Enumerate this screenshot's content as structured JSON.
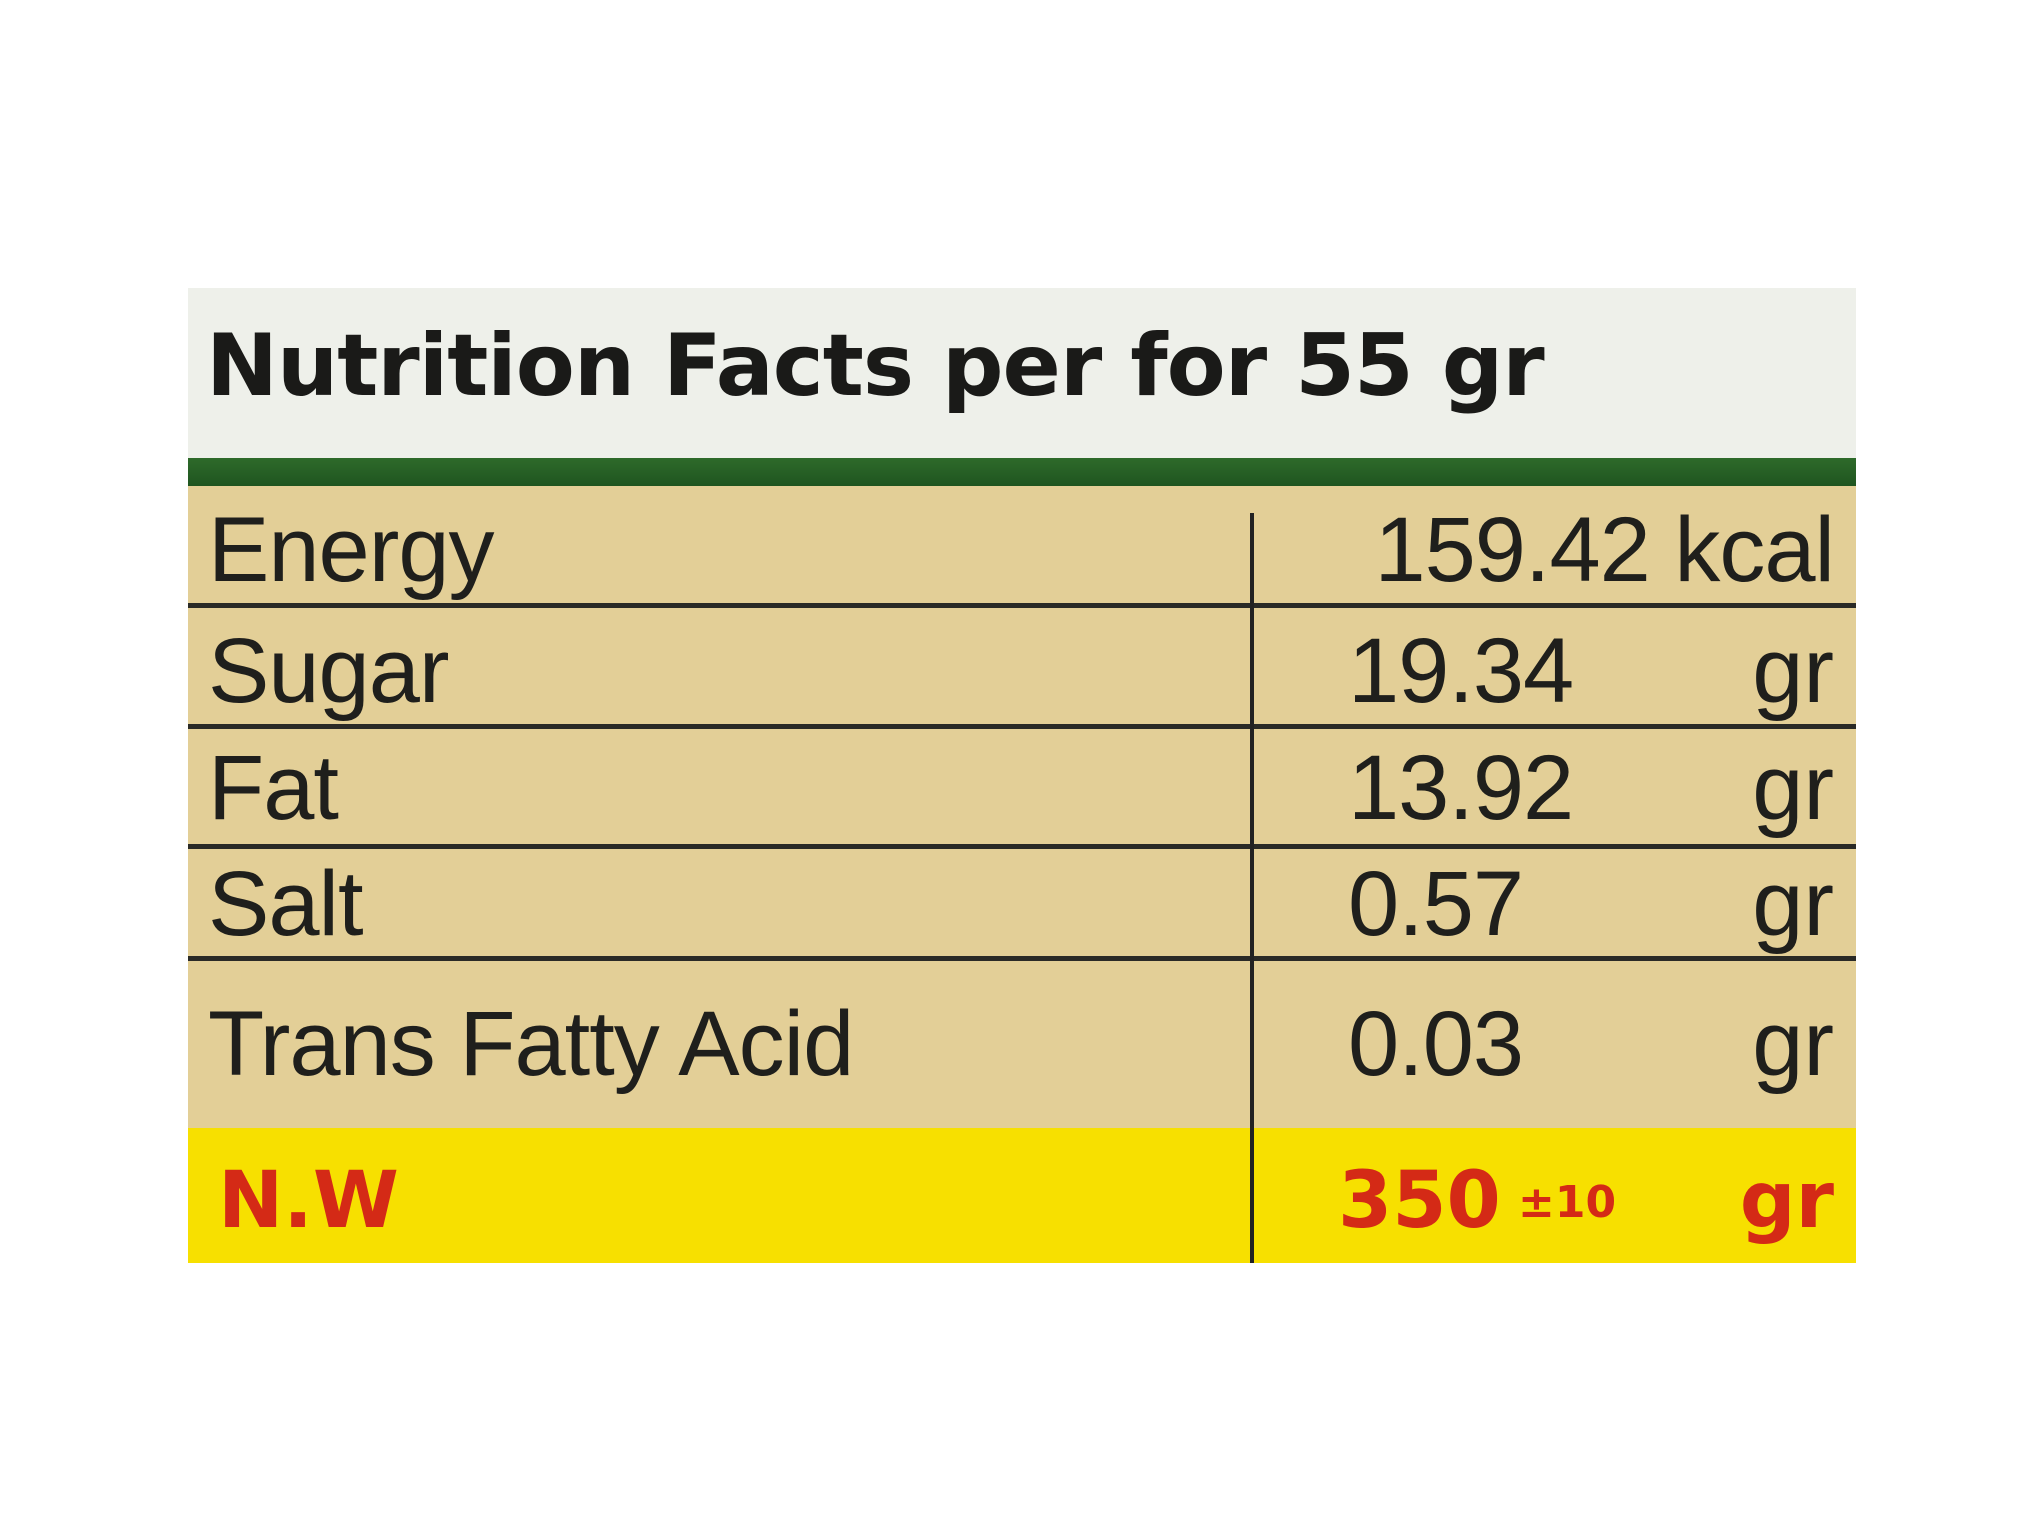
{
  "title": "Nutrition Facts per for 55 gr",
  "rows": [
    {
      "name": "Energy",
      "value": "159.42 kcal",
      "unit": ""
    },
    {
      "name": "Sugar",
      "value": "19.34",
      "unit": "gr"
    },
    {
      "name": "Fat",
      "value": "13.92",
      "unit": "gr"
    },
    {
      "name": "Salt",
      "value": "0.57",
      "unit": "gr"
    },
    {
      "name": "Trans Fatty Acid",
      "value": "0.03",
      "unit": "gr"
    }
  ],
  "net_weight": {
    "label": "N.W",
    "value": "350",
    "tolerance": "±10",
    "unit": "gr"
  },
  "colors": {
    "header_bg": "#eef0ea",
    "accent_green": "#2e6a2a",
    "table_bg": "#e3cf97",
    "highlight_yellow": "#f7e000",
    "highlight_text": "#d42a16"
  }
}
